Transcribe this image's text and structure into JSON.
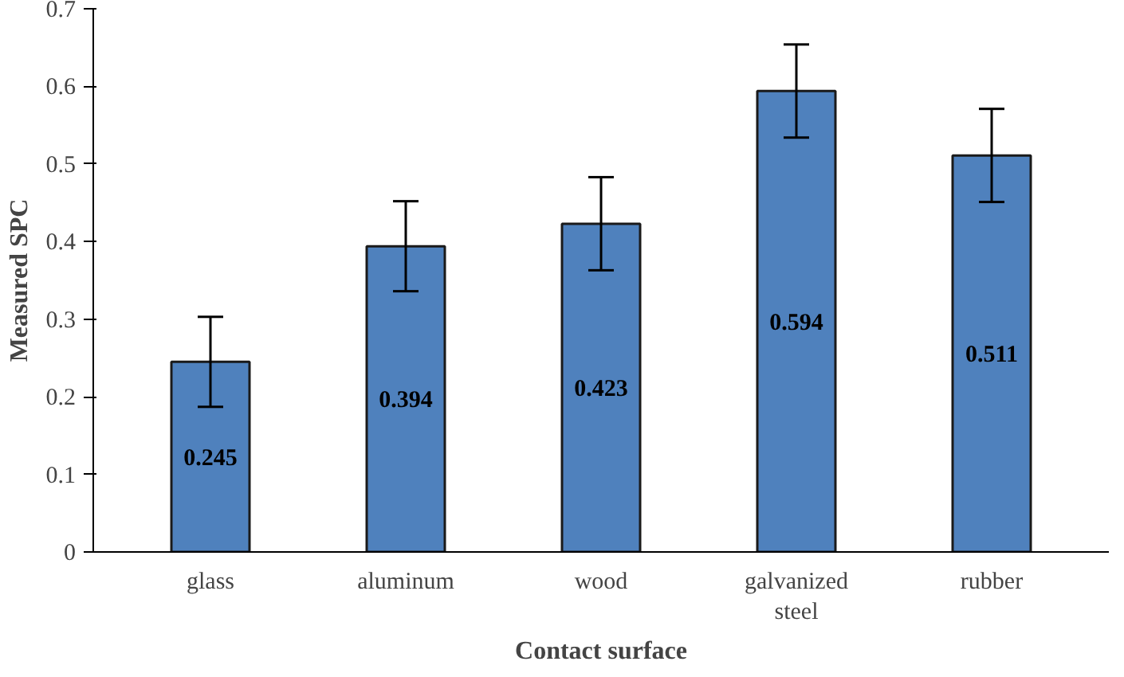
{
  "chart_data": {
    "type": "bar",
    "xlabel": "Contact surface",
    "ylabel": "Measured SPC",
    "categories": [
      "glass",
      "aluminum",
      "wood",
      "galvanized steel",
      "rubber"
    ],
    "values": [
      0.245,
      0.394,
      0.423,
      0.594,
      0.511
    ],
    "errors": [
      0.058,
      0.058,
      0.06,
      0.06,
      0.06
    ],
    "color": "#4f81bd",
    "ylim": [
      0,
      0.7
    ],
    "yticks": [
      {
        "value": 0,
        "label": "0"
      },
      0.1,
      0.2,
      0.3,
      0.4,
      0.5,
      0.6,
      0.7
    ],
    "data_labels": true,
    "grid": false
  }
}
